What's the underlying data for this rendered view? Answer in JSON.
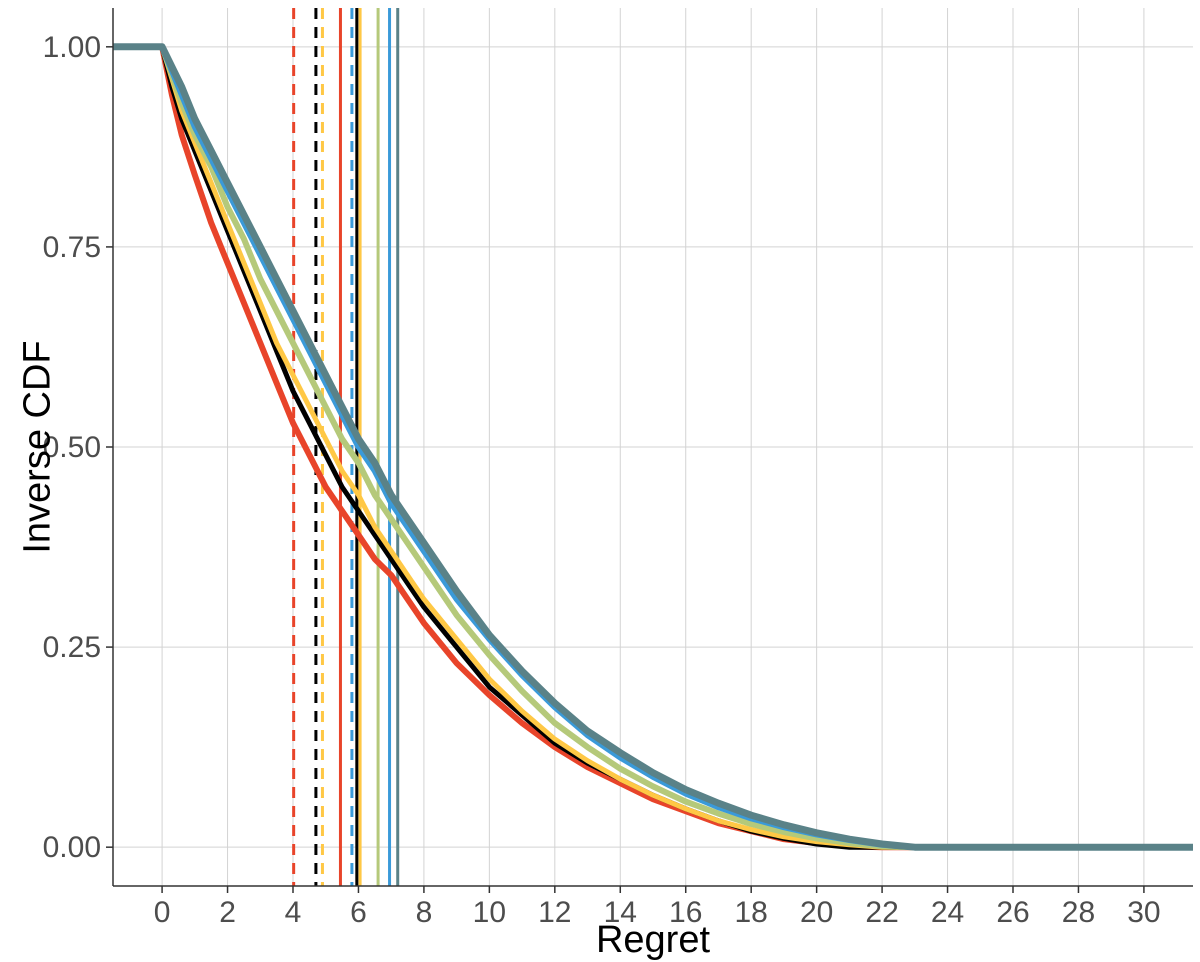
{
  "chart_data": {
    "type": "line",
    "title": "",
    "xlabel": "Regret",
    "ylabel": "Inverse CDF",
    "xlim": [
      -1.5,
      31.5
    ],
    "ylim": [
      -0.0485,
      1.0485
    ],
    "x_ticks": [
      0,
      2,
      4,
      6,
      8,
      10,
      12,
      14,
      16,
      18,
      20,
      22,
      24,
      26,
      28,
      30
    ],
    "x_tick_labels": [
      "0",
      "2",
      "4",
      "6",
      "8",
      "10",
      "12",
      "14",
      "16",
      "18",
      "20",
      "22",
      "24",
      "26",
      "28",
      "30"
    ],
    "y_ticks": [
      0,
      0.25,
      0.5,
      0.75,
      1
    ],
    "y_tick_labels": [
      "0.00",
      "0.25",
      "0.50",
      "0.75",
      "1.00"
    ],
    "grid": true,
    "legend": "none",
    "series": [
      {
        "color": "#E8442A",
        "stroke_width": 6,
        "x": [
          -1.5,
          0,
          0.3,
          0.6,
          1,
          1.5,
          2,
          2.5,
          3,
          3.5,
          4,
          4.5,
          5,
          5.5,
          6,
          6.5,
          7,
          7.5,
          8,
          9,
          10,
          11,
          12,
          13,
          14,
          15,
          16,
          17,
          18,
          19,
          20,
          21,
          22,
          23,
          31.5
        ],
        "y": [
          1,
          1,
          0.94,
          0.89,
          0.84,
          0.78,
          0.73,
          0.68,
          0.63,
          0.58,
          0.53,
          0.49,
          0.45,
          0.42,
          0.39,
          0.36,
          0.34,
          0.31,
          0.28,
          0.23,
          0.19,
          0.155,
          0.125,
          0.1,
          0.08,
          0.06,
          0.045,
          0.03,
          0.02,
          0.01,
          0.005,
          0.001,
          0,
          0,
          0
        ]
      },
      {
        "color": "#000000",
        "stroke_width": 5,
        "x": [
          -1.5,
          0,
          0.3,
          0.6,
          1,
          1.5,
          2,
          2.5,
          3,
          3.5,
          4,
          4.5,
          5,
          5.5,
          6,
          6.5,
          7,
          7.5,
          8,
          9,
          10,
          11,
          12,
          13,
          14,
          15,
          16,
          17,
          18,
          19,
          20,
          21,
          22,
          23,
          31.5
        ],
        "y": [
          1,
          1,
          0.95,
          0.91,
          0.87,
          0.82,
          0.77,
          0.72,
          0.67,
          0.62,
          0.57,
          0.53,
          0.49,
          0.45,
          0.42,
          0.39,
          0.36,
          0.33,
          0.3,
          0.25,
          0.2,
          0.165,
          0.13,
          0.105,
          0.085,
          0.065,
          0.048,
          0.033,
          0.02,
          0.011,
          0.004,
          0,
          0,
          0,
          0
        ]
      },
      {
        "color": "#FFC845",
        "stroke_width": 5,
        "x": [
          -1.5,
          0,
          0.3,
          0.6,
          1,
          1.5,
          2,
          2.5,
          3,
          3.5,
          4,
          4.5,
          5,
          5.5,
          6,
          6.5,
          7,
          7.5,
          8,
          9,
          10,
          11,
          12,
          13,
          14,
          15,
          16,
          17,
          18,
          19,
          20,
          21,
          22,
          23,
          31.5
        ],
        "y": [
          1,
          1,
          0.96,
          0.92,
          0.88,
          0.83,
          0.78,
          0.73,
          0.68,
          0.63,
          0.59,
          0.55,
          0.51,
          0.47,
          0.44,
          0.4,
          0.37,
          0.34,
          0.31,
          0.26,
          0.21,
          0.17,
          0.135,
          0.108,
          0.085,
          0.065,
          0.048,
          0.033,
          0.022,
          0.013,
          0.007,
          0.003,
          0,
          0,
          0
        ]
      },
      {
        "color": "#B5C97A",
        "stroke_width": 6,
        "x": [
          -1.5,
          0,
          0.3,
          0.6,
          1,
          1.5,
          2,
          2.5,
          3,
          3.5,
          4,
          4.5,
          5,
          5.5,
          6,
          6.5,
          7,
          7.5,
          8,
          9,
          10,
          11,
          12,
          13,
          14,
          15,
          16,
          17,
          18,
          19,
          20,
          21,
          22,
          23,
          31.5
        ],
        "y": [
          1,
          1,
          0.965,
          0.93,
          0.89,
          0.85,
          0.8,
          0.76,
          0.71,
          0.67,
          0.63,
          0.59,
          0.55,
          0.51,
          0.48,
          0.44,
          0.41,
          0.38,
          0.35,
          0.29,
          0.24,
          0.195,
          0.155,
          0.125,
          0.098,
          0.076,
          0.057,
          0.042,
          0.029,
          0.019,
          0.011,
          0.005,
          0.001,
          0,
          0
        ]
      },
      {
        "color": "#3A9AD9",
        "stroke_width": 6,
        "x": [
          -1.5,
          0,
          0.3,
          0.6,
          1,
          1.5,
          2,
          2.5,
          3,
          3.5,
          4,
          4.5,
          5,
          5.5,
          6,
          6.5,
          7,
          7.5,
          8,
          9,
          10,
          11,
          12,
          13,
          14,
          15,
          16,
          17,
          18,
          19,
          20,
          21,
          22,
          23,
          31.5
        ],
        "y": [
          1,
          1,
          0.97,
          0.94,
          0.9,
          0.86,
          0.82,
          0.78,
          0.74,
          0.7,
          0.66,
          0.62,
          0.58,
          0.54,
          0.5,
          0.47,
          0.43,
          0.4,
          0.37,
          0.31,
          0.26,
          0.215,
          0.175,
          0.14,
          0.112,
          0.088,
          0.067,
          0.05,
          0.036,
          0.025,
          0.016,
          0.009,
          0.003,
          0,
          0
        ]
      },
      {
        "color": "#5A8288",
        "stroke_width": 7,
        "x": [
          -1.5,
          0,
          0.3,
          0.6,
          1,
          1.5,
          2,
          2.5,
          3,
          3.5,
          4,
          4.5,
          5,
          5.5,
          6,
          6.5,
          7,
          7.5,
          8,
          9,
          10,
          11,
          12,
          13,
          14,
          15,
          16,
          17,
          18,
          19,
          20,
          21,
          22,
          23,
          31.5
        ],
        "y": [
          1,
          1,
          0.975,
          0.95,
          0.91,
          0.87,
          0.83,
          0.79,
          0.75,
          0.71,
          0.67,
          0.63,
          0.59,
          0.55,
          0.51,
          0.48,
          0.44,
          0.41,
          0.38,
          0.32,
          0.265,
          0.22,
          0.18,
          0.145,
          0.118,
          0.093,
          0.072,
          0.055,
          0.04,
          0.028,
          0.018,
          0.01,
          0.004,
          0,
          0
        ]
      }
    ],
    "vlines": [
      {
        "x": 4.02,
        "color": "#E8442A",
        "style": "dashed"
      },
      {
        "x": 4.7,
        "color": "#000000",
        "style": "dashed"
      },
      {
        "x": 4.9,
        "color": "#FFC845",
        "style": "dashed"
      },
      {
        "x": 5.45,
        "color": "#E8442A",
        "style": "solid"
      },
      {
        "x": 5.8,
        "color": "#3A9AD9",
        "style": "dashed"
      },
      {
        "x": 5.95,
        "color": "#000000",
        "style": "solid"
      },
      {
        "x": 6.05,
        "color": "#FFC845",
        "style": "solid"
      },
      {
        "x": 6.6,
        "color": "#B5C97A",
        "style": "solid"
      },
      {
        "x": 6.95,
        "color": "#3A9AD9",
        "style": "solid"
      },
      {
        "x": 7.2,
        "color": "#5A8288",
        "style": "solid"
      }
    ]
  }
}
